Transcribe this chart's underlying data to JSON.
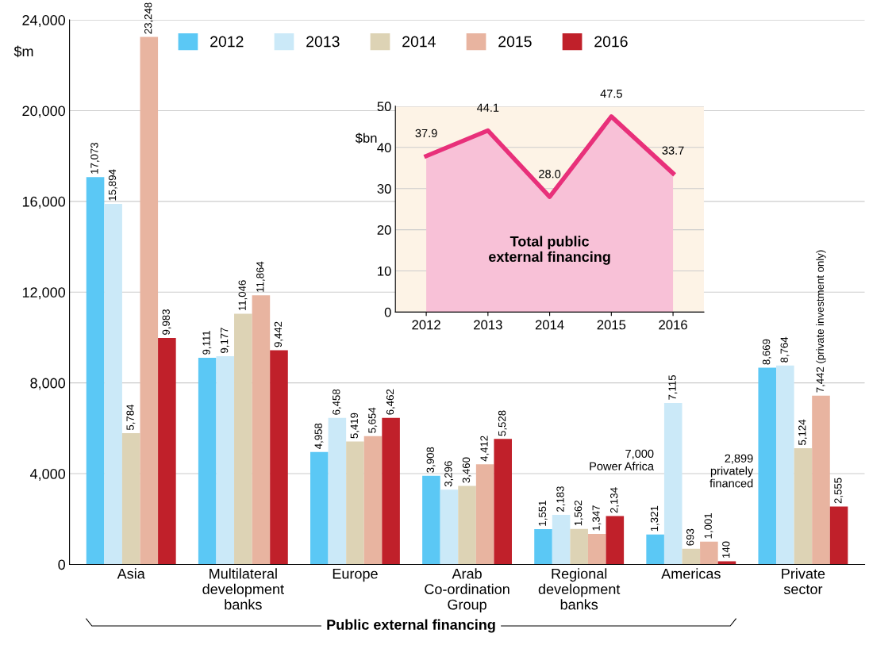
{
  "chart_data": [
    {
      "type": "bar",
      "ylabel": "$m",
      "categories": [
        "Asia",
        "Multilateral\ndevelopment\nbanks",
        "Europe",
        "Arab\nCo-ordination\nGroup",
        "Regional\ndevelopment\nbanks",
        "Americas",
        "Private\nsector"
      ],
      "series": [
        {
          "name": "2012",
          "color": "#5bc8f5",
          "values": [
            17073,
            9111,
            4958,
            3908,
            1551,
            1321,
            8669
          ],
          "value_labels": [
            "17,073",
            "9,111",
            "4,958",
            "3,908",
            "1,551",
            "1,321",
            "8,669"
          ]
        },
        {
          "name": "2013",
          "color": "#cbe9f8",
          "values": [
            15894,
            9177,
            6458,
            3296,
            2183,
            7115,
            8764
          ],
          "value_labels": [
            "15,894",
            "9,177",
            "6,458",
            "3,296",
            "2,183",
            "7,115",
            "8,764"
          ]
        },
        {
          "name": "2014",
          "color": "#ddd3b5",
          "values": [
            5784,
            11046,
            5419,
            3460,
            1562,
            693,
            5124
          ],
          "value_labels": [
            "5,784",
            "11,046",
            "5,419",
            "3,460",
            "1,562",
            "693",
            "5,124"
          ]
        },
        {
          "name": "2015",
          "color": "#e8b4a0",
          "values": [
            23248,
            11864,
            5654,
            4412,
            1347,
            1001,
            7442
          ],
          "value_labels": [
            "23,248",
            "11,864",
            "5,654",
            "4,412",
            "1,347",
            "1,001",
            "7,442 (private investment only)"
          ]
        },
        {
          "name": "2016",
          "color": "#c0202a",
          "values": [
            9983,
            9442,
            6462,
            5528,
            2134,
            140,
            2555
          ],
          "value_labels": [
            "9,983",
            "9,442",
            "6,462",
            "5,528",
            "2,134",
            "140",
            "2,555"
          ]
        }
      ],
      "ylim": [
        0,
        24000
      ],
      "yticks": [
        0,
        {
          "value": 4000,
          "label": "4,000"
        },
        {
          "value": 8000,
          "label": "8,000"
        },
        {
          "value": 12000,
          "label": "12,000"
        },
        {
          "value": 16000,
          "label": "16,000"
        },
        {
          "value": 20000,
          "label": "20,000"
        },
        {
          "value": 24000,
          "label": "24,000"
        }
      ],
      "grid": "y",
      "legend": "top",
      "annotations": [
        "7,000\nPower Africa",
        "2,899\nprivately\nfinanced",
        "Public external financing"
      ]
    },
    {
      "type": "area",
      "title": "Total public\nexternal financing",
      "ylabel": "$bn",
      "categories": [
        "2012",
        "2013",
        "2014",
        "2015",
        "2016"
      ],
      "series": [
        {
          "color": "#e8307a",
          "values": [
            37.9,
            44.1,
            28.0,
            47.5,
            33.7
          ],
          "value_labels": [
            "37.9",
            "44.1",
            "28.0",
            "47.5",
            "33.7"
          ]
        }
      ],
      "ylim": [
        0,
        50
      ],
      "yticks": [
        0,
        10,
        20,
        30,
        40,
        50
      ],
      "grid": "y"
    }
  ]
}
